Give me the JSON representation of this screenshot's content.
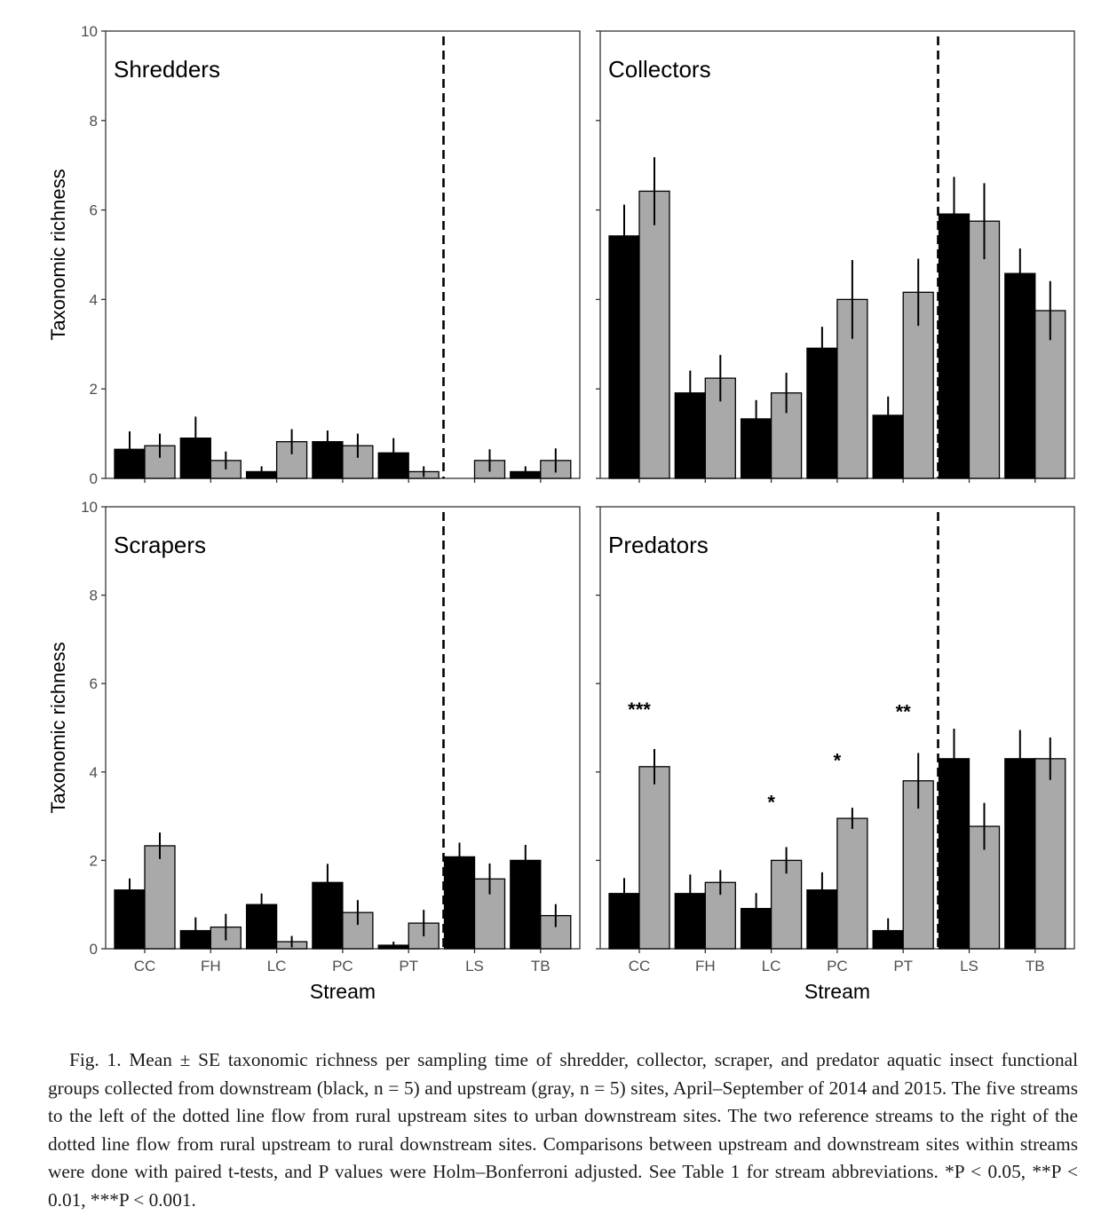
{
  "chart_data": {
    "type": "bar",
    "categories": [
      "CC",
      "FH",
      "LC",
      "PC",
      "PT",
      "LS",
      "TB"
    ],
    "xlabel": "Stream",
    "ylabel": "Taxonomic richness",
    "ylim": [
      0,
      10
    ],
    "yticks": [
      "0",
      "2",
      "4",
      "6",
      "8",
      "10"
    ],
    "grid": false,
    "legend": "none",
    "series_colors": {
      "downstream": "#000000",
      "upstream": "#a9a9a9"
    },
    "divider_after_category": "PT",
    "panels": [
      {
        "title": "Shredders",
        "series": [
          {
            "values": [
              0.65,
              0.9,
              0.15,
              0.82,
              0.57,
              0.0,
              0.15
            ],
            "se": [
              0.4,
              0.48,
              0.12,
              0.25,
              0.33,
              0.0,
              0.12
            ]
          },
          {
            "values": [
              0.73,
              0.4,
              0.82,
              0.73,
              0.15,
              0.4,
              0.4
            ],
            "se": [
              0.27,
              0.2,
              0.28,
              0.27,
              0.12,
              0.25,
              0.27
            ]
          }
        ],
        "annotations": []
      },
      {
        "title": "Collectors",
        "series": [
          {
            "values": [
              5.42,
              1.91,
              1.33,
              2.91,
              1.41,
              5.91,
              4.58
            ],
            "se": [
              0.7,
              0.5,
              0.42,
              0.48,
              0.42,
              0.83,
              0.56
            ]
          },
          {
            "values": [
              6.42,
              2.24,
              1.91,
              4.0,
              4.16,
              5.75,
              3.75
            ],
            "se": [
              0.76,
              0.52,
              0.45,
              0.88,
              0.75,
              0.85,
              0.66
            ]
          }
        ],
        "annotations": []
      },
      {
        "title": "Scrapers",
        "series": [
          {
            "values": [
              1.33,
              0.41,
              1.0,
              1.5,
              0.08,
              2.08,
              2.0
            ],
            "se": [
              0.26,
              0.3,
              0.25,
              0.42,
              0.08,
              0.32,
              0.35
            ]
          },
          {
            "values": [
              2.33,
              0.49,
              0.16,
              0.82,
              0.58,
              1.58,
              0.75
            ],
            "se": [
              0.3,
              0.3,
              0.13,
              0.28,
              0.3,
              0.35,
              0.26
            ]
          }
        ],
        "annotations": []
      },
      {
        "title": "Predators",
        "series": [
          {
            "values": [
              1.25,
              1.25,
              0.91,
              1.33,
              0.41,
              4.3,
              4.3
            ],
            "se": [
              0.35,
              0.43,
              0.35,
              0.4,
              0.28,
              0.68,
              0.65
            ]
          },
          {
            "values": [
              4.12,
              1.5,
              2.0,
              2.95,
              3.8,
              2.77,
              4.3
            ],
            "se": [
              0.4,
              0.28,
              0.3,
              0.24,
              0.63,
              0.53,
              0.48
            ]
          }
        ],
        "annotations": [
          {
            "category": "CC",
            "text": "***",
            "y": 5.5
          },
          {
            "category": "LC",
            "text": "*",
            "y": 3.4
          },
          {
            "category": "PC",
            "text": "*",
            "y": 4.35
          },
          {
            "category": "PT",
            "text": "**",
            "y": 5.45
          }
        ]
      }
    ]
  },
  "caption": "Fig. 1. Mean ± SE taxonomic richness per sampling time of shredder, collector, scraper, and predator aquatic insect functional groups collected from downstream (black, n = 5) and upstream (gray, n = 5) sites, April–September of 2014 and 2015. The five streams to the left of the dotted line flow from rural upstream sites to urban downstream sites. The two reference streams to the right of the dotted line flow from rural upstream to rural downstream sites. Comparisons between upstream and downstream sites within streams were done with paired t-tests, and P values were Holm–Bonferroni adjusted. See Table 1 for stream abbreviations. *P < 0.05, **P < 0.01, ***P < 0.001."
}
